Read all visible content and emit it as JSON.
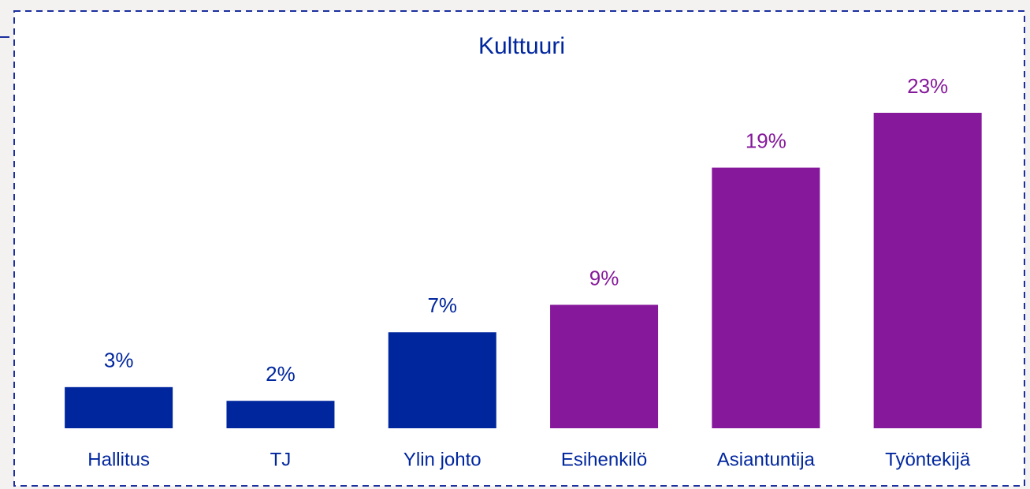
{
  "chart_data": {
    "type": "bar",
    "title": "Kulttuuri",
    "categories": [
      "Hallitus",
      "TJ",
      "Ylin johto",
      "Esihenkilö",
      "Asiantuntija",
      "Työntekijä"
    ],
    "values": [
      3,
      2,
      7,
      9,
      19,
      23
    ],
    "value_labels": [
      "3%",
      "2%",
      "7%",
      "9%",
      "19%",
      "23%"
    ],
    "colors": [
      "#00269e",
      "#00269e",
      "#00269e",
      "#86199b",
      "#86199b",
      "#86199b"
    ]
  }
}
